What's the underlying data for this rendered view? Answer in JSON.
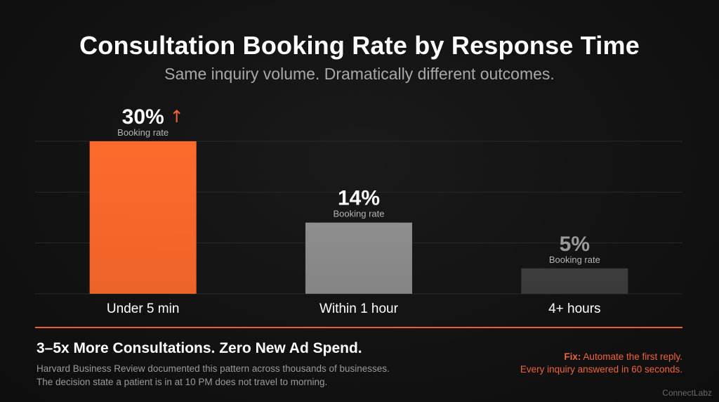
{
  "header": {
    "title": "Consultation Booking Rate by Response Time",
    "subtitle": "Same inquiry volume. Dramatically different outcomes."
  },
  "chart_data": {
    "type": "bar",
    "title": "Consultation Booking Rate by Response Time",
    "subtitle": "Same inquiry volume. Dramatically different outcomes.",
    "categories": [
      "Under 5 min",
      "Within 1 hour",
      "4+ hours"
    ],
    "values": [
      30,
      14,
      5
    ],
    "value_labels": [
      "30%",
      "14%",
      "5%"
    ],
    "sub_labels": [
      "Booking rate",
      "Booking rate",
      "Booking rate"
    ],
    "highlight_arrow": "↑",
    "unit": "%",
    "ylim": [
      0,
      30
    ],
    "grid": true,
    "legend": "none",
    "bar_colors": [
      "#ff6a2c",
      "#8e8e8e",
      "#3d3d3d"
    ],
    "value_label_colors": [
      "#ffffff",
      "#ffffff",
      "#9a9a9a"
    ],
    "arrow_color": "#f0643a"
  },
  "footer": {
    "headline": "3–5x More Consultations. Zero New Ad Spend.",
    "body_lines": [
      "Harvard Business Review documented this pattern across thousands of businesses.",
      "The decision state a patient is in at 10 PM does not travel to morning."
    ],
    "fix_label": "Fix:",
    "fix_line1": " Automate the first reply.",
    "fix_line2": "Every inquiry answered in 60 seconds.",
    "brand": "ConnectLabz"
  },
  "colors": {
    "accent": "#f0643a",
    "background": "#111111"
  }
}
